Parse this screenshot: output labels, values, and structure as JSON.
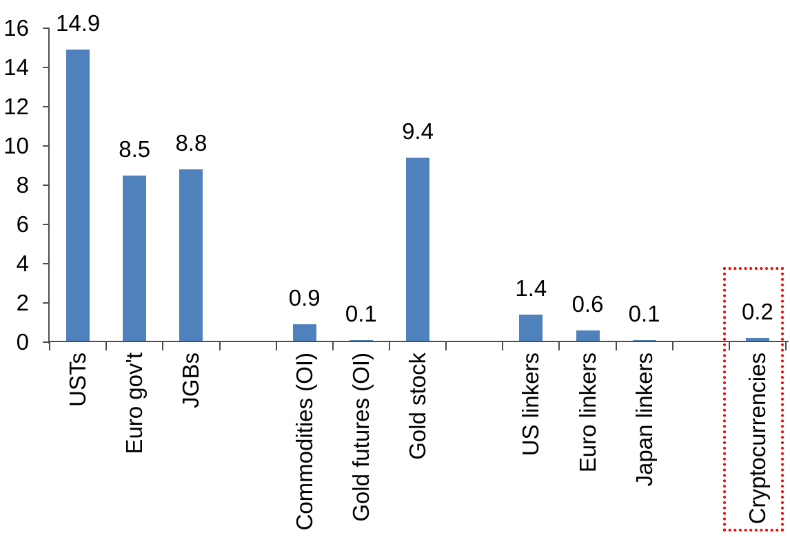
{
  "chart_data": {
    "type": "bar",
    "title": "",
    "xlabel": "",
    "ylabel": "",
    "categories": [
      "USTs",
      "Euro gov't",
      "JGBs",
      "",
      "Commodities (OI)",
      "Gold futures (OI)",
      "Gold stock",
      "",
      "US linkers",
      "Euro linkers",
      "Japan linkers",
      "",
      "Cryptocurrencies"
    ],
    "values": [
      14.9,
      8.5,
      8.8,
      null,
      0.9,
      0.1,
      9.4,
      null,
      1.4,
      0.6,
      0.1,
      null,
      0.2
    ],
    "value_labels": [
      "14.9",
      "8.5",
      "8.8",
      "",
      "0.9",
      "0.1",
      "9.4",
      "",
      "1.4",
      "0.6",
      "0.1",
      "",
      "0.2"
    ],
    "ylim": [
      0,
      16
    ],
    "ytick_step": 2,
    "ytick_labels": [
      "0",
      "2",
      "4",
      "6",
      "8",
      "10",
      "12",
      "14",
      "16"
    ],
    "grid": "off",
    "legend": "none",
    "bar_color": "#4F81BD",
    "axis_color": "#4d4d4d",
    "text_color": "#000000",
    "highlight": {
      "category": "Cryptocurrencies",
      "category_index": 12,
      "border_color": "#FF0000",
      "border_style": "dotted"
    }
  }
}
